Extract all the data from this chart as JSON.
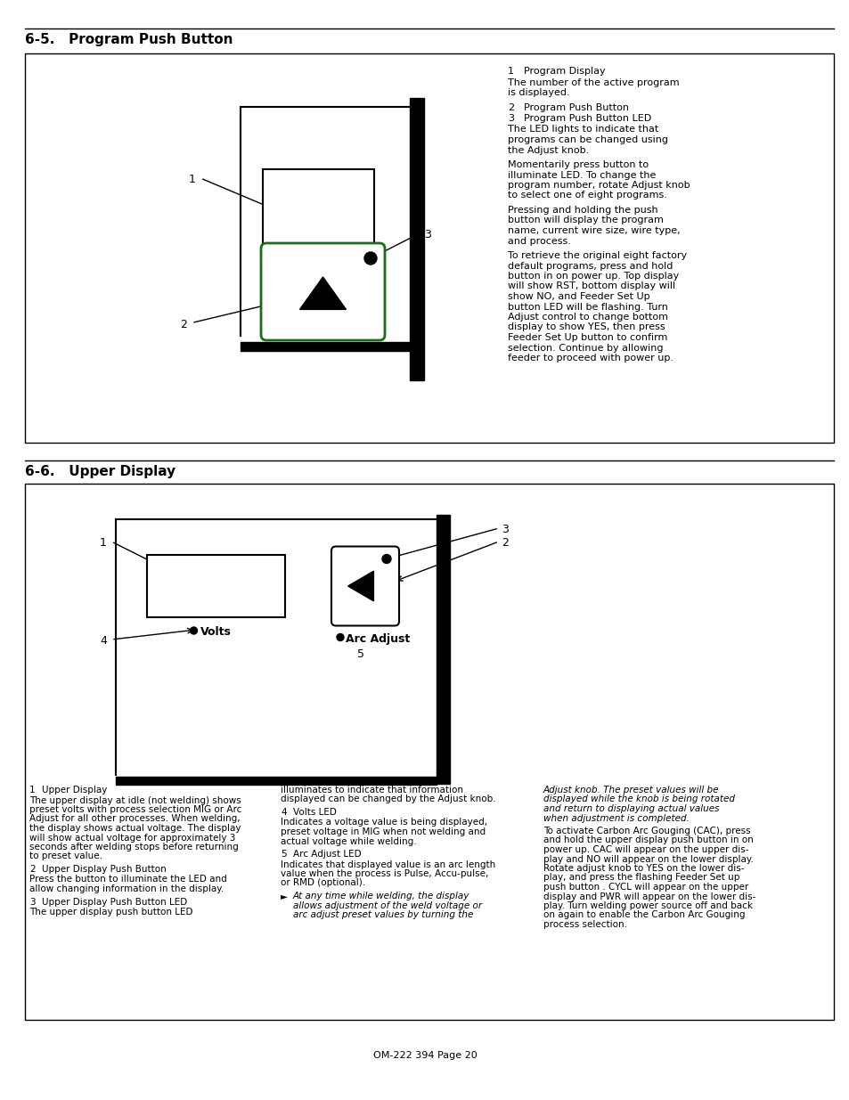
{
  "page_bg": "#ffffff",
  "title1": "6-5.   Program Push Button",
  "title2": "6-6.   Upper Display",
  "footer": "OM-222 394 Page 20",
  "sec1_right": [
    {
      "num": "1",
      "label": "Program Display",
      "bold_label": false
    },
    {
      "text": "The number of the active program\nis displayed."
    },
    {
      "num": "2",
      "label": "Program Push Button",
      "bold_label": false
    },
    {
      "num": "3",
      "label": "Program Push Button LED",
      "bold_label": false
    },
    {
      "text": "The LED lights to indicate that\nprograms can be changed using\nthe Adjust knob."
    },
    {
      "text": "Momentarily press button to\nilluminate LED. To change the\nprogram number, rotate Adjust knob\nto select one of eight programs."
    },
    {
      "text": "Pressing and holding the push\nbutton will display the program\nname, current wire size, wire type,\nand process."
    },
    {
      "text": "To retrieve the original eight factory\ndefault programs, press and hold\nbutton in on power up. Top display\nwill show RST, bottom display will\nshow NO, and Feeder Set Up\nbutton LED will be flashing. Turn\nAdjust control to change bottom\ndisplay to show YES, then press\nFeeder Set Up button to confirm\nselection. Continue by allowing\nfeeder to proceed with power up."
    }
  ],
  "sec2_col1": [
    {
      "num": "1",
      "label": "Upper Display"
    },
    {
      "text": "The upper display at idle (not welding) shows\npreset volts with process selection MIG or Arc\nAdjust for all other processes. When welding,\nthe display shows actual voltage. The display\nwill show actual voltage for approximately 3\nseconds after welding stops before returning\nto preset value."
    },
    {
      "num": "2",
      "label": "Upper Display Push Button"
    },
    {
      "text": "Press the button to illuminate the LED and\nallow changing information in the display."
    },
    {
      "num": "3",
      "label": "Upper Display Push Button LED"
    },
    {
      "text": "The upper display push button LED"
    }
  ],
  "sec2_col2": [
    {
      "text": "illuminates to indicate that information\ndisplayed can be changed by the Adjust knob."
    },
    {
      "num": "4",
      "label": "Volts LED"
    },
    {
      "text": "Indicates a voltage value is being displayed,\npreset voltage in MIG when not welding and\nactual voltage while welding."
    },
    {
      "num": "5",
      "label": "Arc Adjust LED"
    },
    {
      "text": "Indicates that displayed value is an arc length\nvalue when the process is Pulse, Accu-pulse,\nor RMD (optional)."
    },
    {
      "italic": true,
      "note": true,
      "text": "At any time while welding, the display\nallows adjustment of the weld voltage or\narc adjust preset values by turning the"
    }
  ],
  "sec2_col3": [
    {
      "italic": true,
      "text": "Adjust knob. The preset values will be\ndisplayed while the knob is being rotated\nand return to displaying actual values\nwhen adjustment is completed."
    },
    {
      "text": "To activate Carbon Arc Gouging (CAC), press\nand hold the upper display push button in on\npower up. CAC will appear on the upper dis-\nplay and NO will appear on the lower display.\nRotate adjust knob to YES on the lower dis-\nplay, and press the flashing Feeder Set up\npush button . CYCL will appear on the upper\ndisplay and PWR will appear on the lower dis-\nplay. Turn welding power source off and back\non again to enable the Carbon Arc Gouging\nprocess selection."
    }
  ]
}
